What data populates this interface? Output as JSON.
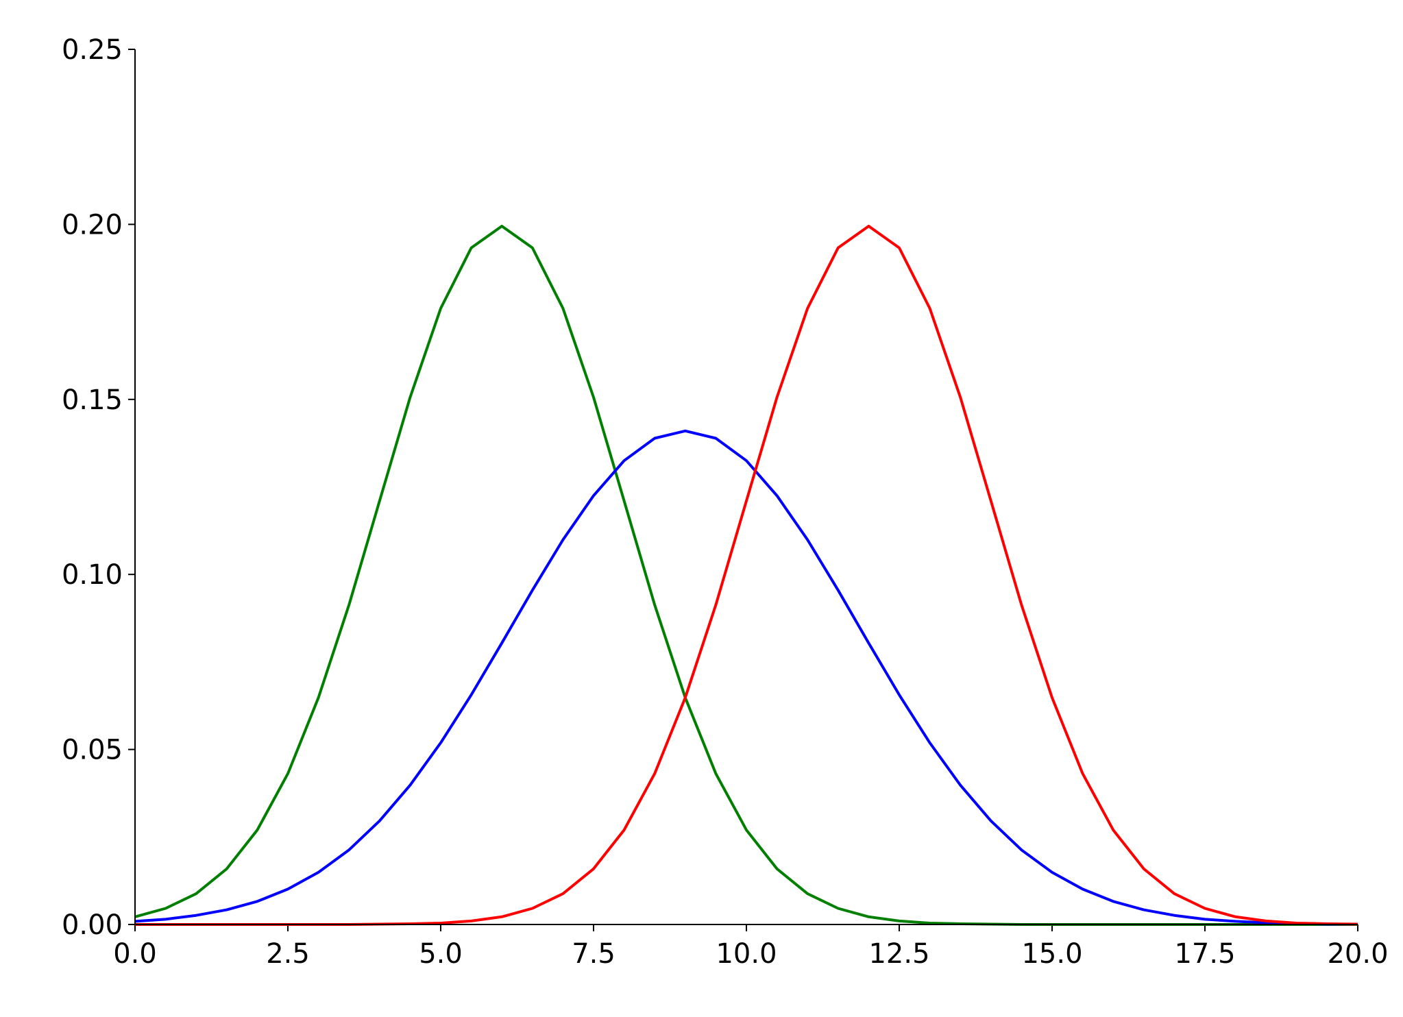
{
  "chart_data": {
    "type": "line",
    "x": [
      0,
      0.5,
      1,
      1.5,
      2,
      2.5,
      3,
      3.5,
      4,
      4.5,
      5,
      5.5,
      6,
      6.5,
      7,
      7.5,
      8,
      8.5,
      9,
      9.5,
      10,
      10.5,
      11,
      11.5,
      12,
      12.5,
      13,
      13.5,
      14,
      14.5,
      15,
      15.5,
      16,
      16.5,
      17,
      17.5,
      18,
      18.5,
      19,
      19.5,
      20
    ],
    "series": [
      {
        "color": "#007f00",
        "values": [
          0.0022,
          0.0046,
          0.0088,
          0.0159,
          0.027,
          0.0431,
          0.0648,
          0.0913,
          0.121,
          0.1506,
          0.176,
          0.1933,
          0.1995,
          0.1933,
          0.176,
          0.1506,
          0.121,
          0.0913,
          0.0648,
          0.0431,
          0.027,
          0.0159,
          0.0088,
          0.0046,
          0.0022,
          0.001,
          0.0004,
          0.0002,
          0.0001,
          0,
          0,
          0,
          0,
          0,
          0,
          0,
          0,
          0,
          0,
          0,
          0
        ]
      },
      {
        "color": "#0000ff",
        "values": [
          0.0009,
          0.0015,
          0.0026,
          0.0042,
          0.0066,
          0.0101,
          0.0149,
          0.0213,
          0.0296,
          0.0398,
          0.0519,
          0.0656,
          0.0804,
          0.0955,
          0.1099,
          0.1225,
          0.1325,
          0.1389,
          0.141,
          0.1389,
          0.1325,
          0.1225,
          0.1099,
          0.0955,
          0.0804,
          0.0656,
          0.0519,
          0.0398,
          0.0296,
          0.0213,
          0.0149,
          0.0101,
          0.0066,
          0.0042,
          0.0026,
          0.0015,
          0.0009,
          0.0005,
          0.0003,
          0.0001,
          0.0001
        ]
      },
      {
        "color": "#ff0000",
        "values": [
          0,
          0,
          0,
          0,
          0,
          0,
          0,
          0,
          0.0001,
          0.0002,
          0.0004,
          0.001,
          0.0022,
          0.0046,
          0.0088,
          0.0159,
          0.027,
          0.0431,
          0.0648,
          0.0913,
          0.121,
          0.1506,
          0.176,
          0.1933,
          0.1995,
          0.1933,
          0.176,
          0.1506,
          0.121,
          0.0913,
          0.0648,
          0.0431,
          0.027,
          0.0159,
          0.0088,
          0.0046,
          0.0022,
          0.001,
          0.0004,
          0.0002,
          0.0001
        ]
      }
    ],
    "xlim": [
      0,
      20
    ],
    "xticks": [
      {
        "value": 0,
        "label": "0.0"
      },
      2.5,
      {
        "value": 5,
        "label": "5.0"
      },
      7.5,
      {
        "value": 10,
        "label": "10.0"
      },
      12.5,
      {
        "value": 15,
        "label": "15.0"
      },
      17.5,
      {
        "value": 20,
        "label": "20.0"
      }
    ],
    "ylim": [
      0,
      0.25
    ],
    "yticks": [
      {
        "value": 0,
        "label": "0.00"
      },
      0.05,
      {
        "value": 0.1,
        "label": "0.10"
      },
      0.15,
      {
        "value": 0.2,
        "label": "0.20"
      },
      {
        "value": 0.25,
        "label": "0.25"
      }
    ],
    "grid": false
  }
}
